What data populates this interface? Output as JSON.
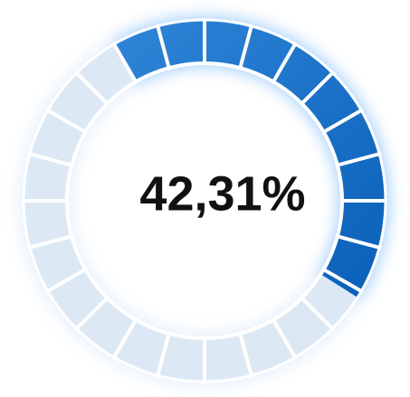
{
  "progress": {
    "value": 42.31,
    "label": "42,31%"
  }
}
